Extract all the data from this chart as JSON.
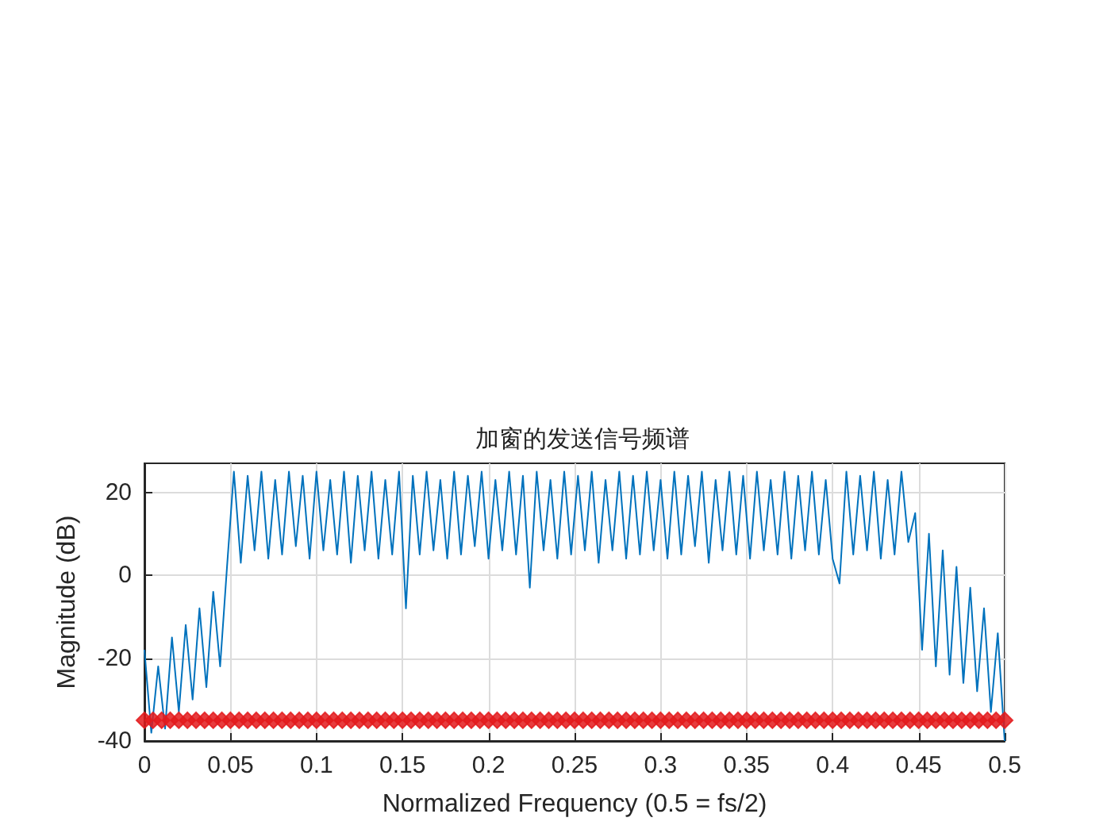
{
  "chart_data": {
    "type": "line",
    "title": "加窗的发送信号频谱",
    "xlabel": "Normalized Frequency (0.5 = fs/2)",
    "ylabel": "Magnitude (dB)",
    "xlim": [
      0,
      0.5
    ],
    "ylim": [
      -40,
      27
    ],
    "xticks": [
      0,
      0.05,
      0.1,
      0.15,
      0.2,
      0.25,
      0.3,
      0.35,
      0.4,
      0.45,
      0.5
    ],
    "yticks": [
      -40,
      -20,
      0,
      20
    ],
    "grid": true,
    "series": [
      {
        "marker": "none",
        "color": "#0072bd",
        "x": [
          0,
          0.004,
          0.008,
          0.012,
          0.016,
          0.02,
          0.024,
          0.028,
          0.032,
          0.036,
          0.04,
          0.044,
          0.048,
          0.052,
          0.056,
          0.06,
          0.064,
          0.068,
          0.072,
          0.076,
          0.08,
          0.084,
          0.088,
          0.092,
          0.096,
          0.1,
          0.104,
          0.108,
          0.112,
          0.116,
          0.12,
          0.124,
          0.128,
          0.132,
          0.136,
          0.14,
          0.144,
          0.148,
          0.152,
          0.156,
          0.16,
          0.164,
          0.168,
          0.172,
          0.176,
          0.18,
          0.184,
          0.188,
          0.192,
          0.196,
          0.2,
          0.204,
          0.208,
          0.212,
          0.216,
          0.22,
          0.224,
          0.228,
          0.232,
          0.236,
          0.24,
          0.244,
          0.248,
          0.252,
          0.256,
          0.26,
          0.264,
          0.268,
          0.272,
          0.276,
          0.28,
          0.284,
          0.288,
          0.292,
          0.296,
          0.3,
          0.304,
          0.308,
          0.312,
          0.316,
          0.32,
          0.324,
          0.328,
          0.332,
          0.336,
          0.34,
          0.344,
          0.348,
          0.352,
          0.356,
          0.36,
          0.364,
          0.368,
          0.372,
          0.376,
          0.38,
          0.384,
          0.388,
          0.392,
          0.396,
          0.4,
          0.404,
          0.408,
          0.412,
          0.416,
          0.42,
          0.424,
          0.428,
          0.432,
          0.436,
          0.44,
          0.444,
          0.448,
          0.452,
          0.456,
          0.46,
          0.464,
          0.468,
          0.472,
          0.476,
          0.48,
          0.484,
          0.488,
          0.492,
          0.496,
          0.5
        ],
        "values": [
          -18,
          -38,
          -22,
          -37,
          -15,
          -33,
          -12,
          -30,
          -8,
          -27,
          -4,
          -22,
          2,
          25,
          3,
          24,
          6,
          25,
          4,
          23,
          5,
          25,
          7,
          24,
          4,
          25,
          6,
          23,
          5,
          25,
          3,
          24,
          6,
          25,
          4,
          23,
          5,
          25,
          -8,
          24,
          5,
          25,
          6,
          23,
          4,
          25,
          5,
          24,
          7,
          25,
          4,
          23,
          6,
          25,
          5,
          24,
          -3,
          25,
          6,
          23,
          4,
          25,
          5,
          24,
          6,
          25,
          3,
          23,
          6,
          25,
          4,
          24,
          5,
          25,
          6,
          23,
          4,
          25,
          5,
          24,
          7,
          25,
          3,
          23,
          6,
          25,
          5,
          24,
          4,
          25,
          6,
          23,
          5,
          25,
          4,
          24,
          6,
          25,
          5,
          23,
          4,
          -2,
          25,
          5,
          24,
          6,
          25,
          4,
          23,
          5,
          25,
          8,
          15,
          -18,
          10,
          -22,
          6,
          -24,
          2,
          -26,
          -3,
          -28,
          -8,
          -33,
          -14,
          -40
        ]
      },
      {
        "type": "scatter",
        "marker": "diamond",
        "color": "#e31a1c",
        "x": [
          0,
          0.005,
          0.01,
          0.015,
          0.02,
          0.025,
          0.03,
          0.035,
          0.04,
          0.045,
          0.05,
          0.055,
          0.06,
          0.065,
          0.07,
          0.075,
          0.08,
          0.085,
          0.09,
          0.095,
          0.1,
          0.105,
          0.11,
          0.115,
          0.12,
          0.125,
          0.13,
          0.135,
          0.14,
          0.145,
          0.15,
          0.155,
          0.16,
          0.165,
          0.17,
          0.175,
          0.18,
          0.185,
          0.19,
          0.195,
          0.2,
          0.205,
          0.21,
          0.215,
          0.22,
          0.225,
          0.23,
          0.235,
          0.24,
          0.245,
          0.25,
          0.255,
          0.26,
          0.265,
          0.27,
          0.275,
          0.28,
          0.285,
          0.29,
          0.295,
          0.3,
          0.305,
          0.31,
          0.315,
          0.32,
          0.325,
          0.33,
          0.335,
          0.34,
          0.345,
          0.35,
          0.355,
          0.36,
          0.365,
          0.37,
          0.375,
          0.38,
          0.385,
          0.39,
          0.395,
          0.4,
          0.405,
          0.41,
          0.415,
          0.42,
          0.425,
          0.43,
          0.435,
          0.44,
          0.445,
          0.45,
          0.455,
          0.46,
          0.465,
          0.47,
          0.475,
          0.48,
          0.485,
          0.49,
          0.495,
          0.5
        ],
        "values": [
          -35,
          -35,
          -35,
          -35,
          -35,
          -35,
          -35,
          -35,
          -35,
          -35,
          -35,
          -35,
          -35,
          -35,
          -35,
          -35,
          -35,
          -35,
          -35,
          -35,
          -35,
          -35,
          -35,
          -35,
          -35,
          -35,
          -35,
          -35,
          -35,
          -35,
          -35,
          -35,
          -35,
          -35,
          -35,
          -35,
          -35,
          -35,
          -35,
          -35,
          -35,
          -35,
          -35,
          -35,
          -35,
          -35,
          -35,
          -35,
          -35,
          -35,
          -35,
          -35,
          -35,
          -35,
          -35,
          -35,
          -35,
          -35,
          -35,
          -35,
          -35,
          -35,
          -35,
          -35,
          -35,
          -35,
          -35,
          -35,
          -35,
          -35,
          -35,
          -35,
          -35,
          -35,
          -35,
          -35,
          -35,
          -35,
          -35,
          -35,
          -35,
          -35,
          -35,
          -35,
          -35,
          -35,
          -35,
          -35,
          -35,
          -35,
          -35,
          -35,
          -35,
          -35,
          -35,
          -35,
          -35,
          -35,
          -35,
          -35,
          -35
        ]
      }
    ]
  }
}
